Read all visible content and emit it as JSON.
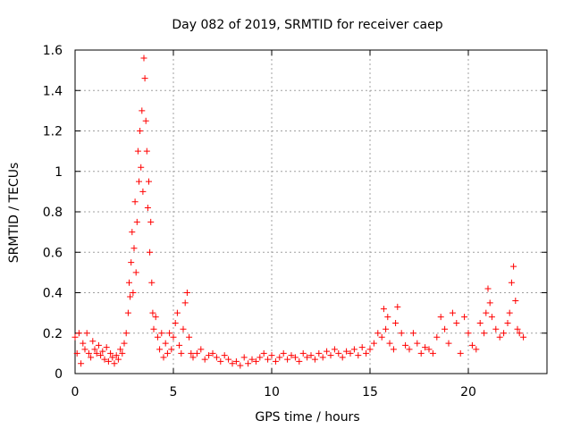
{
  "chart_data": {
    "type": "scatter",
    "title": "Day 082 of 2019, SRMTID for receiver caep",
    "xlabel": "GPS time / hours",
    "ylabel": "SRMTID / TECUs",
    "xlim": [
      0,
      24
    ],
    "ylim": [
      0,
      1.6
    ],
    "x_ticks": [
      0,
      5,
      10,
      15,
      20
    ],
    "x_tick_labels": [
      "0",
      "5",
      "10",
      "15",
      "20"
    ],
    "y_ticks": [
      0,
      0.2,
      0.4,
      0.6,
      0.8,
      1.0,
      1.2,
      1.4,
      1.6
    ],
    "y_tick_labels": [
      "0",
      "0.2",
      "0.4",
      "0.6",
      "0.8",
      "1",
      "1.2",
      "1.4",
      "1.6"
    ],
    "grid": true,
    "marker": "plus",
    "color": "#ff0000",
    "series": [
      {
        "name": "SRMTID",
        "x": [
          0.0,
          0.1,
          0.2,
          0.3,
          0.4,
          0.5,
          0.6,
          0.7,
          0.8,
          0.9,
          1.0,
          1.1,
          1.2,
          1.3,
          1.4,
          1.5,
          1.6,
          1.7,
          1.8,
          1.9,
          2.0,
          2.1,
          2.2,
          2.3,
          2.4,
          2.5,
          2.6,
          2.7,
          2.75,
          2.8,
          2.85,
          2.9,
          2.95,
          3.0,
          3.05,
          3.1,
          3.15,
          3.2,
          3.25,
          3.3,
          3.35,
          3.4,
          3.45,
          3.5,
          3.55,
          3.6,
          3.65,
          3.7,
          3.75,
          3.8,
          3.85,
          3.9,
          3.95,
          4.0,
          4.1,
          4.2,
          4.3,
          4.4,
          4.5,
          4.6,
          4.7,
          4.8,
          4.9,
          5.0,
          5.1,
          5.2,
          5.3,
          5.4,
          5.5,
          5.6,
          5.7,
          5.8,
          5.9,
          6.0,
          6.2,
          6.4,
          6.6,
          6.8,
          7.0,
          7.2,
          7.4,
          7.6,
          7.8,
          8.0,
          8.2,
          8.4,
          8.6,
          8.8,
          9.0,
          9.2,
          9.4,
          9.6,
          9.8,
          10.0,
          10.2,
          10.4,
          10.6,
          10.8,
          11.0,
          11.2,
          11.4,
          11.6,
          11.8,
          12.0,
          12.2,
          12.4,
          12.6,
          12.8,
          13.0,
          13.2,
          13.4,
          13.6,
          13.8,
          14.0,
          14.2,
          14.4,
          14.6,
          14.8,
          15.0,
          15.2,
          15.4,
          15.6,
          15.7,
          15.8,
          15.9,
          16.0,
          16.2,
          16.3,
          16.4,
          16.6,
          16.8,
          17.0,
          17.2,
          17.4,
          17.6,
          17.8,
          18.0,
          18.2,
          18.4,
          18.6,
          18.8,
          19.0,
          19.2,
          19.4,
          19.6,
          19.8,
          20.0,
          20.2,
          20.4,
          20.6,
          20.8,
          20.9,
          21.0,
          21.1,
          21.2,
          21.4,
          21.6,
          21.8,
          22.0,
          22.1,
          22.2,
          22.3,
          22.4,
          22.5,
          22.6,
          22.8
        ],
        "y": [
          0.18,
          0.1,
          0.2,
          0.05,
          0.15,
          0.12,
          0.2,
          0.1,
          0.08,
          0.16,
          0.12,
          0.1,
          0.14,
          0.09,
          0.11,
          0.07,
          0.13,
          0.06,
          0.1,
          0.08,
          0.05,
          0.09,
          0.07,
          0.12,
          0.1,
          0.15,
          0.2,
          0.3,
          0.45,
          0.38,
          0.55,
          0.7,
          0.4,
          0.62,
          0.85,
          0.5,
          0.75,
          1.1,
          0.95,
          1.2,
          1.02,
          1.3,
          0.9,
          1.56,
          1.46,
          1.25,
          1.1,
          0.82,
          0.95,
          0.6,
          0.75,
          0.45,
          0.3,
          0.22,
          0.28,
          0.18,
          0.12,
          0.2,
          0.08,
          0.15,
          0.1,
          0.2,
          0.12,
          0.18,
          0.25,
          0.3,
          0.14,
          0.1,
          0.22,
          0.35,
          0.4,
          0.18,
          0.1,
          0.08,
          0.1,
          0.12,
          0.07,
          0.09,
          0.1,
          0.08,
          0.06,
          0.09,
          0.07,
          0.05,
          0.06,
          0.04,
          0.08,
          0.05,
          0.07,
          0.06,
          0.08,
          0.1,
          0.07,
          0.09,
          0.06,
          0.08,
          0.1,
          0.07,
          0.09,
          0.08,
          0.06,
          0.1,
          0.08,
          0.09,
          0.07,
          0.1,
          0.08,
          0.11,
          0.09,
          0.12,
          0.1,
          0.08,
          0.11,
          0.1,
          0.12,
          0.09,
          0.13,
          0.1,
          0.12,
          0.15,
          0.2,
          0.18,
          0.32,
          0.22,
          0.28,
          0.15,
          0.12,
          0.25,
          0.33,
          0.2,
          0.14,
          0.12,
          0.2,
          0.15,
          0.1,
          0.13,
          0.12,
          0.1,
          0.18,
          0.28,
          0.22,
          0.15,
          0.3,
          0.25,
          0.1,
          0.28,
          0.2,
          0.14,
          0.12,
          0.25,
          0.2,
          0.3,
          0.42,
          0.35,
          0.28,
          0.22,
          0.18,
          0.2,
          0.25,
          0.3,
          0.45,
          0.53,
          0.36,
          0.22,
          0.2,
          0.18
        ]
      }
    ]
  }
}
